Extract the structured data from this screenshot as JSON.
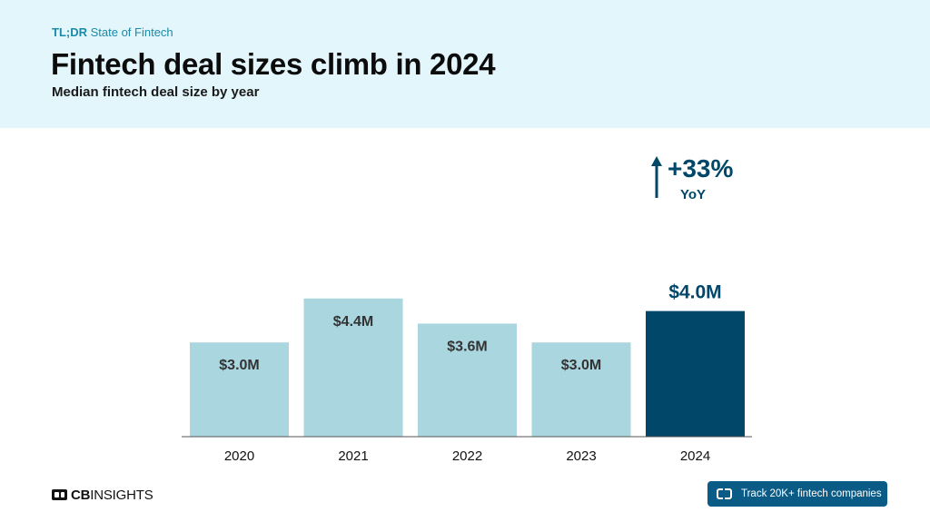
{
  "header": {
    "eyebrow_bold": "TL;DR",
    "eyebrow_rest": " State of Fintech",
    "title": "Fintech deal sizes climb in 2024",
    "subtitle": "Median fintech deal size by year"
  },
  "chart_data": {
    "type": "bar",
    "categories": [
      "2020",
      "2021",
      "2022",
      "2023",
      "2024"
    ],
    "values": [
      3.0,
      4.4,
      3.6,
      3.0,
      4.0
    ],
    "value_labels": [
      "$3.0M",
      "$4.4M",
      "$3.6M",
      "$3.0M",
      "$4.0M"
    ],
    "ylim": [
      0,
      5.55
    ],
    "highlight_index": 4,
    "annotation": {
      "change": "+33%",
      "period": "YoY"
    },
    "colors": {
      "bar": "#aad6df",
      "highlight": "#00476a",
      "label_dark": "#333333",
      "axis": "#555555"
    }
  },
  "footer": {
    "logo_bold": "CB",
    "logo_rest": "INSIGHTS",
    "cta_label": "Track 20K+ fintech companies"
  }
}
